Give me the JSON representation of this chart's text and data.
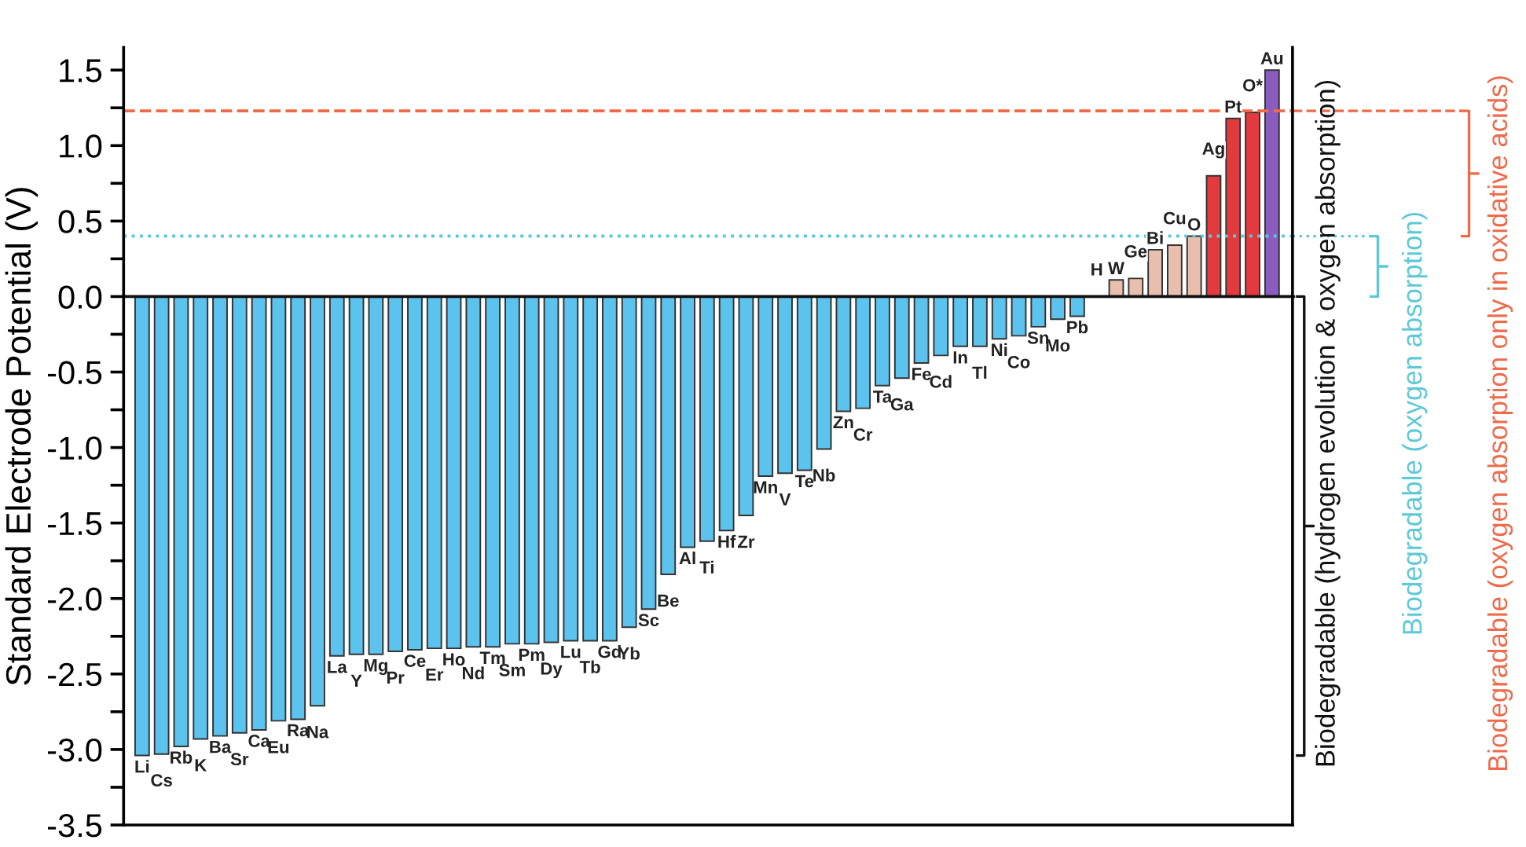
{
  "chart_data": {
    "type": "bar",
    "ylabel": "Standard Electrode Potential (V)",
    "categories": [
      "Li",
      "Cs",
      "Rb",
      "K",
      "Ba",
      "Sr",
      "Ca",
      "Eu",
      "Ra",
      "Na",
      "La",
      "Y",
      "Mg",
      "Pr",
      "Ce",
      "Er",
      "Ho",
      "Nd",
      "Tm",
      "Sm",
      "Pm",
      "Dy",
      "Lu",
      "Tb",
      "Gd",
      "Yb",
      "Sc",
      "Be",
      "Al",
      "Ti",
      "Hf",
      "Zr",
      "Mn",
      "V",
      "Te",
      "Nb",
      "Zn",
      "Cr",
      "Ta",
      "Ga",
      "Fe",
      "Cd",
      "In",
      "Tl",
      "Ni",
      "Co",
      "Sn",
      "Mo",
      "Pb",
      "H",
      "W",
      "Ge",
      "Bi",
      "Cu",
      "O",
      "Ag",
      "Pt",
      "O*",
      "Au"
    ],
    "values": [
      -3.04,
      -3.03,
      -2.98,
      -2.93,
      -2.91,
      -2.89,
      -2.87,
      -2.81,
      -2.8,
      -2.71,
      -2.38,
      -2.37,
      -2.37,
      -2.35,
      -2.34,
      -2.33,
      -2.33,
      -2.32,
      -2.32,
      -2.3,
      -2.3,
      -2.29,
      -2.28,
      -2.28,
      -2.28,
      -2.19,
      -2.07,
      -1.84,
      -1.66,
      -1.62,
      -1.55,
      -1.45,
      -1.19,
      -1.17,
      -1.15,
      -1.01,
      -0.76,
      -0.74,
      -0.59,
      -0.54,
      -0.44,
      -0.39,
      -0.33,
      -0.33,
      -0.28,
      -0.26,
      -0.2,
      -0.15,
      -0.13,
      0,
      0.11,
      0.12,
      0.31,
      0.34,
      0.4,
      0.8,
      1.18,
      1.22,
      1.5
    ],
    "colors": [
      "#5cc3ee",
      "#5cc3ee",
      "#5cc3ee",
      "#5cc3ee",
      "#5cc3ee",
      "#5cc3ee",
      "#5cc3ee",
      "#5cc3ee",
      "#5cc3ee",
      "#5cc3ee",
      "#5cc3ee",
      "#5cc3ee",
      "#5cc3ee",
      "#5cc3ee",
      "#5cc3ee",
      "#5cc3ee",
      "#5cc3ee",
      "#5cc3ee",
      "#5cc3ee",
      "#5cc3ee",
      "#5cc3ee",
      "#5cc3ee",
      "#5cc3ee",
      "#5cc3ee",
      "#5cc3ee",
      "#5cc3ee",
      "#5cc3ee",
      "#5cc3ee",
      "#5cc3ee",
      "#5cc3ee",
      "#5cc3ee",
      "#5cc3ee",
      "#5cc3ee",
      "#5cc3ee",
      "#5cc3ee",
      "#5cc3ee",
      "#5cc3ee",
      "#5cc3ee",
      "#5cc3ee",
      "#5cc3ee",
      "#5cc3ee",
      "#5cc3ee",
      "#5cc3ee",
      "#5cc3ee",
      "#5cc3ee",
      "#5cc3ee",
      "#5cc3ee",
      "#5cc3ee",
      "#5cc3ee",
      "#e8bfae",
      "#e8bfae",
      "#e8bfae",
      "#e8bfae",
      "#e8bfae",
      "#e8bfae",
      "#e23a3f",
      "#e23a3f",
      "#e23a3f",
      "#8a5cc0"
    ],
    "ylim": [
      -3.5,
      1.65
    ],
    "yticks": [
      1.5,
      {
        "value": 1.25,
        "label": null
      },
      {
        "value": 1.0,
        "label": "1.0"
      },
      {
        "value": 0.75,
        "label": null
      },
      0.5,
      {
        "value": 0.25,
        "label": null
      },
      {
        "value": 0.0,
        "label": "0.0"
      },
      {
        "value": -0.25,
        "label": null
      },
      -0.5,
      {
        "value": -0.75,
        "label": null
      },
      {
        "value": -1.0,
        "label": "-1.0"
      },
      {
        "value": -1.25,
        "label": null
      },
      -1.5,
      {
        "value": -1.75,
        "label": null
      },
      {
        "value": -2.0,
        "label": "-2.0"
      },
      {
        "value": -2.25,
        "label": null
      },
      -2.5,
      {
        "value": -2.75,
        "label": null
      },
      {
        "value": -3.0,
        "label": "-3.0"
      },
      {
        "value": -3.25,
        "label": null
      },
      -3.5
    ],
    "grid": false,
    "ref_lines": [
      {
        "axis": "y",
        "value": 1.23,
        "label": "Biodegradable (oxygen absorption only in oxidative acids)",
        "color": "#ee6a4a",
        "line_style": "dashed"
      },
      {
        "axis": "y",
        "value": 0.4,
        "label": "Biodegradable (oxygen absorption)",
        "color": "#5cc9d6",
        "line_style": "dotted"
      },
      {
        "axis": "y",
        "value": 0.0,
        "label": "Biodegradable (hydrogen evolution & oxygen absorption)",
        "color": "#111111",
        "line_style": "solid"
      }
    ]
  }
}
